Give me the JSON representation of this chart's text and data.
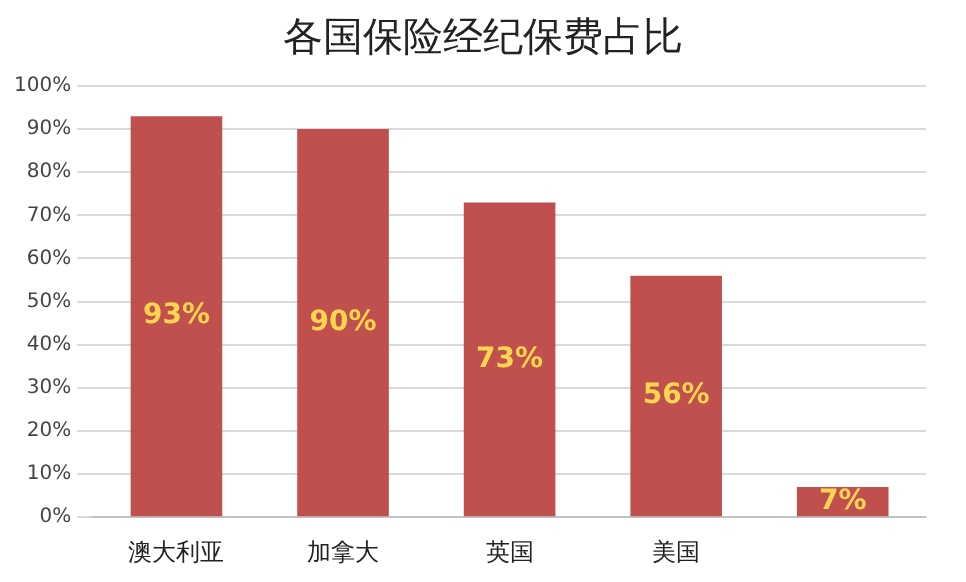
{
  "chart_data": {
    "type": "bar",
    "title": "各国保险经纪保费占比",
    "categories": [
      "澳大利亚",
      "加拿大",
      "英国",
      "美国",
      null
    ],
    "values": [
      93,
      90,
      73,
      56,
      7
    ],
    "color": "#c0504d",
    "value_labels": [
      "93%",
      "90%",
      "73%",
      "56%",
      "7%"
    ],
    "ylim": [
      0,
      100
    ],
    "yticks": [
      {
        "value": 0,
        "label": "0%"
      },
      {
        "value": 10,
        "label": "10%"
      },
      {
        "value": 20,
        "label": "20%"
      },
      {
        "value": 30,
        "label": "30%"
      },
      {
        "value": 40,
        "label": "40%"
      },
      {
        "value": 50,
        "label": "50%"
      },
      {
        "value": 60,
        "label": "60%"
      },
      {
        "value": 70,
        "label": "70%"
      },
      {
        "value": 80,
        "label": "80%"
      },
      {
        "value": 90,
        "label": "90%"
      },
      {
        "value": 100,
        "label": "100%"
      }
    ],
    "grid": "y",
    "legend": false
  }
}
